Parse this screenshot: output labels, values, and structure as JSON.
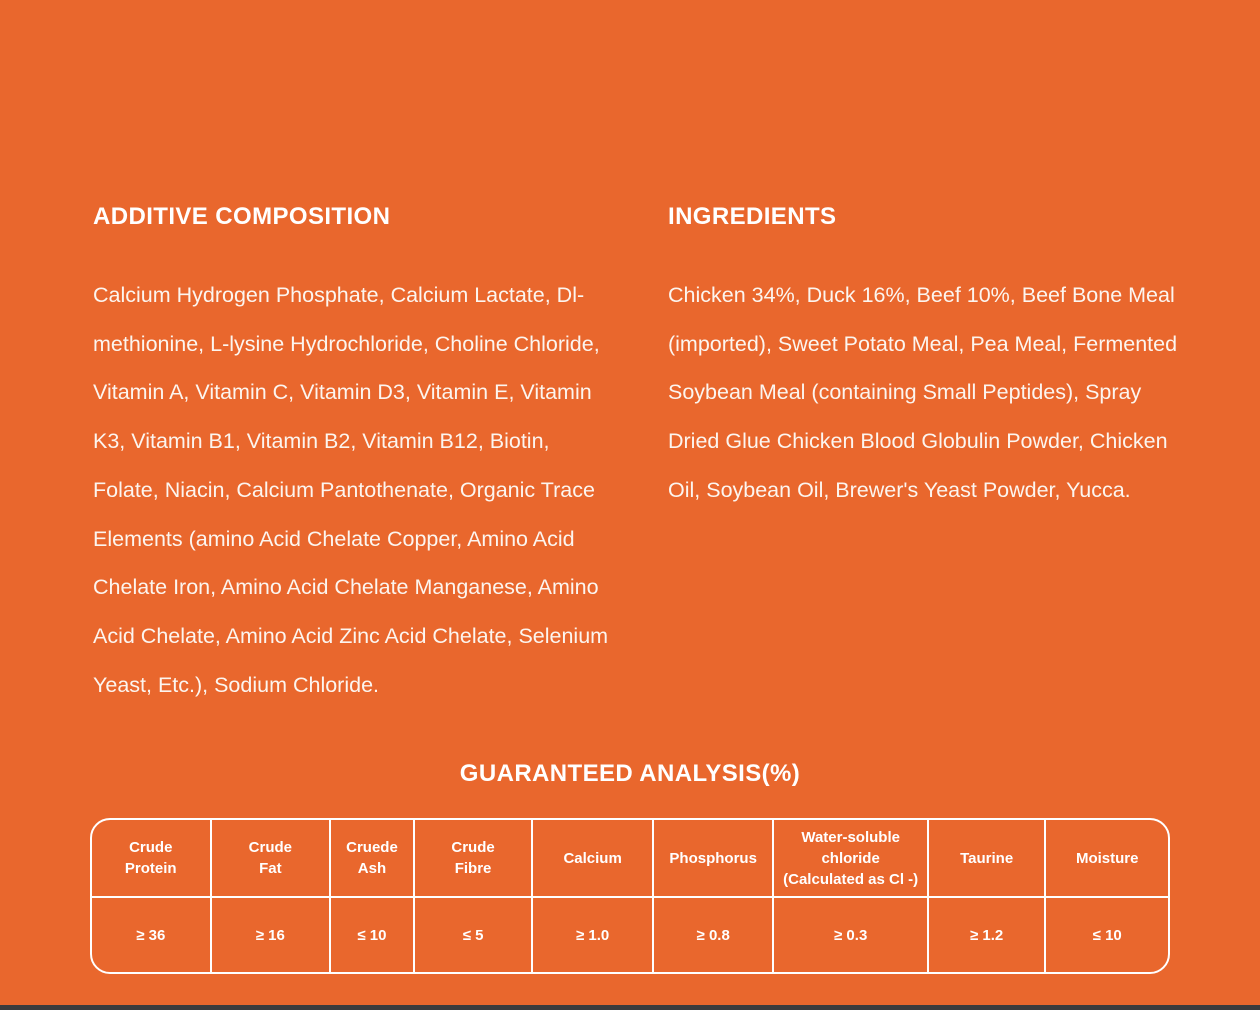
{
  "colors": {
    "page_background": "#E9672D",
    "heading_text": "#FFFFFF",
    "body_text": "#FCF5EF",
    "table_border": "#FFFFFF",
    "bottom_edge_bar": "#3B3B3D"
  },
  "additive": {
    "title": "ADDITIVE COMPOSITION",
    "lines": [
      "Calcium Hydrogen Phosphate, Calcium Lactate, Dl-",
      "methionine, L-lysine Hydrochloride, Choline Chloride,",
      "Vitamin A, Vitamin C, Vitamin D3, Vitamin E, Vitamin",
      "K3, Vitamin B1, Vitamin B2, Vitamin B12, Biotin,",
      "Folate, Niacin, Calcium Pantothenate, Organic Trace",
      "Elements (amino Acid Chelate Copper, Amino Acid",
      "Chelate Iron, Amino Acid Chelate Manganese, Amino",
      "Acid Chelate, Amino Acid Zinc Acid Chelate, Selenium",
      "Yeast, Etc.), Sodium Chloride."
    ]
  },
  "ingredients": {
    "title": "INGREDIENTS",
    "lines": [
      "Chicken 34%, Duck 16%, Beef 10%, Beef Bone Meal",
      "(imported), Sweet Potato Meal, Pea Meal, Fermented",
      "Soybean Meal (containing Small Peptides), Spray",
      "Dried Glue Chicken Blood Globulin Powder, Chicken",
      "Oil, Soybean Oil, Brewer's Yeast Powder, Yucca."
    ]
  },
  "analysis": {
    "title": "GUARANTEED ANALYSIS(%)",
    "table": {
      "columns": [
        [
          "Crude",
          "Protein"
        ],
        [
          "Crude",
          "Fat"
        ],
        [
          "Cruede",
          "Ash"
        ],
        [
          "Crude",
          "Fibre"
        ],
        [
          "Calcium"
        ],
        [
          "Phosphorus"
        ],
        [
          "Water-soluble",
          "chloride",
          "(Calculated as Cl -)"
        ],
        [
          "Taurine"
        ],
        [
          "Moisture"
        ]
      ],
      "values": [
        "≥ 36",
        "≥ 16",
        "≤ 10",
        "≤ 5",
        "≥ 1.0",
        "≥ 0.8",
        "≥ 0.3",
        "≥ 1.2",
        "≤ 10"
      ]
    }
  }
}
